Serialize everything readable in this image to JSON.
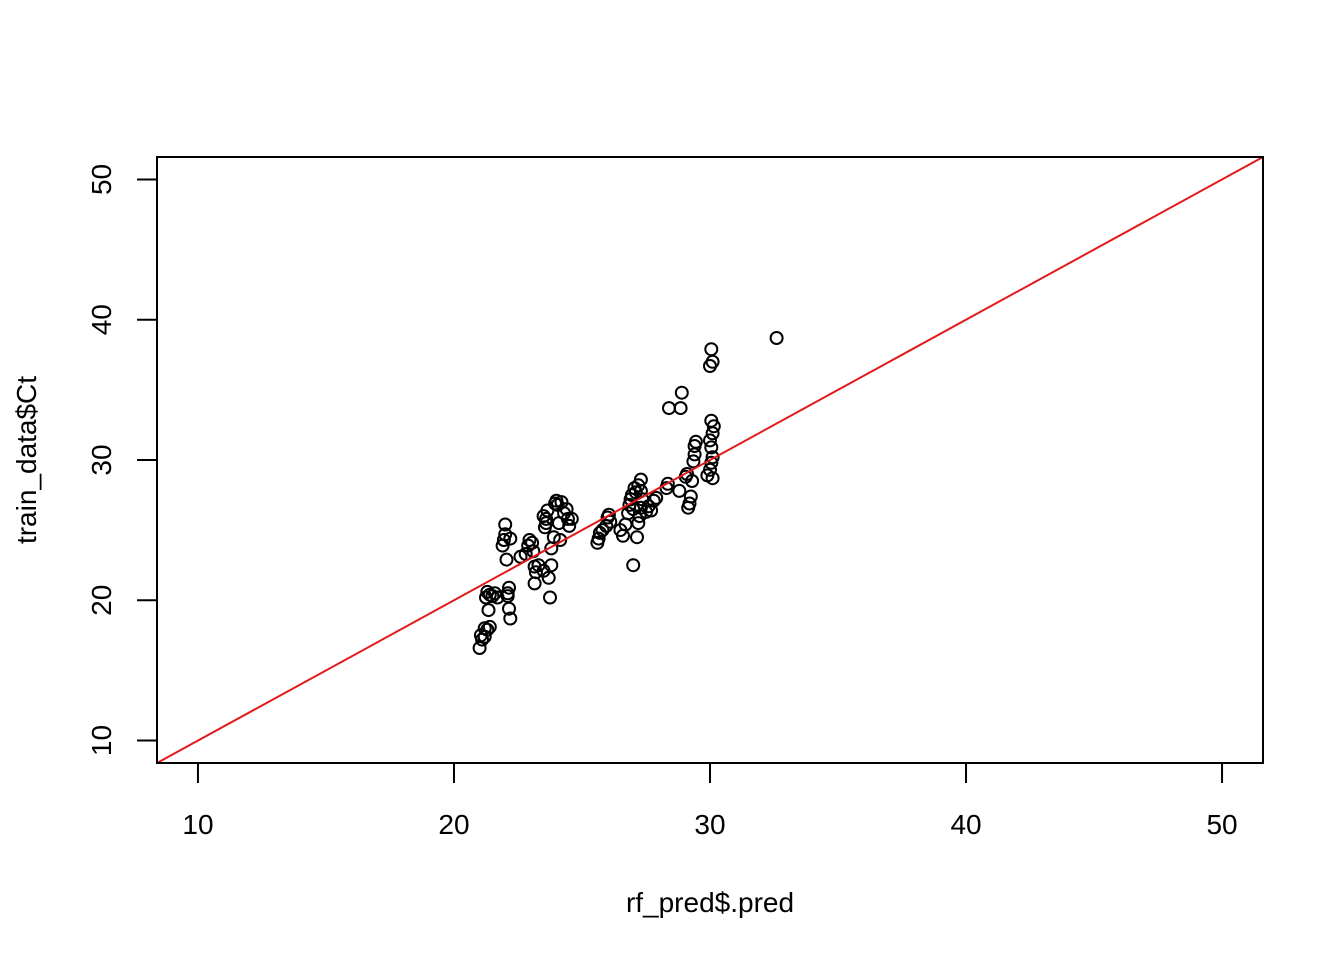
{
  "chart_data": {
    "type": "scatter",
    "title": "",
    "xlabel": "rf_pred$.pred",
    "ylabel": "train_data$Ct",
    "xlim": [
      8.4,
      51.6
    ],
    "ylim": [
      8.4,
      51.6
    ],
    "x_ticks": [
      10,
      20,
      30,
      40,
      50
    ],
    "y_ticks": [
      10,
      20,
      30,
      40,
      50
    ],
    "grid": false,
    "point_style": "open-circle",
    "colors": {
      "points": "#000000",
      "reference_line": "#e31a1c",
      "frame": "#000000"
    },
    "reference_line": {
      "type": "abline",
      "intercept": 0,
      "slope": 1
    },
    "points": [
      [
        21.0,
        16.6
      ],
      [
        21.1,
        17.2
      ],
      [
        21.05,
        17.5
      ],
      [
        21.2,
        17.4
      ],
      [
        21.3,
        17.9
      ],
      [
        21.4,
        18.1
      ],
      [
        21.2,
        18.0
      ],
      [
        21.25,
        20.2
      ],
      [
        21.3,
        20.6
      ],
      [
        21.4,
        20.4
      ],
      [
        21.5,
        20.3
      ],
      [
        21.6,
        20.5
      ],
      [
        21.7,
        20.2
      ],
      [
        21.35,
        19.3
      ],
      [
        21.9,
        23.9
      ],
      [
        21.95,
        24.3
      ],
      [
        22.0,
        24.7
      ],
      [
        22.0,
        25.4
      ],
      [
        22.05,
        22.9
      ],
      [
        22.2,
        24.4
      ],
      [
        22.1,
        20.3
      ],
      [
        22.15,
        20.9
      ],
      [
        22.15,
        19.4
      ],
      [
        22.2,
        18.7
      ],
      [
        22.1,
        20.5
      ],
      [
        22.6,
        23.1
      ],
      [
        22.8,
        23.3
      ],
      [
        22.9,
        23.9
      ],
      [
        22.95,
        24.3
      ],
      [
        23.05,
        24.1
      ],
      [
        23.1,
        23.5
      ],
      [
        23.15,
        22.4
      ],
      [
        23.2,
        22.0
      ],
      [
        23.15,
        21.2
      ],
      [
        23.3,
        22.5
      ],
      [
        23.5,
        22.1
      ],
      [
        23.55,
        25.2
      ],
      [
        23.6,
        25.8
      ],
      [
        23.65,
        26.4
      ],
      [
        23.5,
        26.0
      ],
      [
        23.6,
        25.5
      ],
      [
        23.7,
        21.6
      ],
      [
        23.75,
        20.2
      ],
      [
        23.8,
        22.5
      ],
      [
        23.8,
        23.7
      ],
      [
        23.9,
        24.5
      ],
      [
        23.95,
        26.9
      ],
      [
        24.0,
        27.1
      ],
      [
        24.05,
        26.8
      ],
      [
        24.1,
        25.5
      ],
      [
        24.15,
        24.3
      ],
      [
        24.2,
        27.0
      ],
      [
        24.3,
        26.2
      ],
      [
        24.4,
        26.5
      ],
      [
        24.45,
        25.8
      ],
      [
        24.5,
        25.3
      ],
      [
        24.6,
        25.8
      ],
      [
        25.6,
        24.1
      ],
      [
        25.65,
        24.4
      ],
      [
        25.7,
        24.8
      ],
      [
        25.8,
        25.0
      ],
      [
        25.95,
        25.3
      ],
      [
        26.0,
        25.9
      ],
      [
        26.05,
        26.1
      ],
      [
        26.1,
        25.6
      ],
      [
        26.5,
        25.0
      ],
      [
        26.6,
        24.6
      ],
      [
        26.7,
        25.4
      ],
      [
        26.8,
        26.2
      ],
      [
        26.85,
        26.8
      ],
      [
        26.9,
        27.2
      ],
      [
        26.95,
        27.5
      ],
      [
        27.0,
        26.5
      ],
      [
        27.0,
        22.5
      ],
      [
        27.05,
        28.0
      ],
      [
        27.1,
        27.7
      ],
      [
        27.15,
        24.5
      ],
      [
        27.2,
        25.5
      ],
      [
        27.25,
        26.0
      ],
      [
        27.3,
        26.6
      ],
      [
        27.35,
        27.2
      ],
      [
        27.3,
        28.6
      ],
      [
        27.3,
        27.8
      ],
      [
        27.2,
        28.2
      ],
      [
        27.5,
        26.3
      ],
      [
        27.6,
        26.7
      ],
      [
        27.7,
        26.4
      ],
      [
        27.8,
        27.1
      ],
      [
        27.9,
        27.3
      ],
      [
        28.3,
        28.0
      ],
      [
        28.35,
        28.3
      ],
      [
        28.4,
        33.7
      ],
      [
        28.8,
        27.8
      ],
      [
        28.85,
        33.7
      ],
      [
        28.9,
        34.8
      ],
      [
        29.05,
        28.8
      ],
      [
        29.1,
        29.0
      ],
      [
        29.15,
        26.6
      ],
      [
        29.2,
        26.9
      ],
      [
        29.25,
        27.4
      ],
      [
        29.3,
        28.5
      ],
      [
        29.35,
        29.9
      ],
      [
        29.4,
        30.4
      ],
      [
        29.4,
        31.0
      ],
      [
        29.45,
        31.3
      ],
      [
        29.9,
        28.9
      ],
      [
        30.0,
        29.3
      ],
      [
        30.05,
        29.8
      ],
      [
        30.1,
        30.2
      ],
      [
        30.05,
        30.9
      ],
      [
        30.0,
        31.4
      ],
      [
        30.1,
        31.9
      ],
      [
        30.15,
        32.4
      ],
      [
        30.05,
        32.8
      ],
      [
        30.1,
        28.7
      ],
      [
        30.0,
        36.7
      ],
      [
        30.1,
        37.0
      ],
      [
        30.05,
        37.9
      ],
      [
        32.6,
        38.7
      ]
    ]
  }
}
